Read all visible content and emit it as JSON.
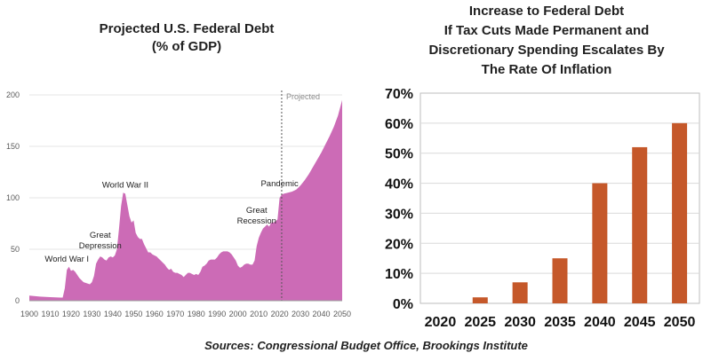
{
  "source_note": "Sources: Congressional Budget Office, Brookings Institute",
  "chart_data": [
    {
      "type": "area",
      "title_lines": [
        "Projected U.S. Federal Debt",
        "(% of GDP)"
      ],
      "color": "#cc6bb6",
      "xlim": [
        1900,
        2050
      ],
      "ylim": [
        0,
        200
      ],
      "x_ticks": [
        1900,
        1910,
        1920,
        1930,
        1940,
        1950,
        1960,
        1970,
        1980,
        1990,
        2000,
        2010,
        2020,
        2030,
        2040,
        2050
      ],
      "y_ticks": [
        0,
        50,
        100,
        150,
        200
      ],
      "projection_start": 2021,
      "projection_label": "Projected",
      "annotations": [
        {
          "lines": [
            "World War I"
          ],
          "x": 1918,
          "y": 38
        },
        {
          "lines": [
            "Great",
            "Depression"
          ],
          "x": 1934,
          "y": 51
        },
        {
          "lines": [
            "World War II"
          ],
          "x": 1946,
          "y": 110
        },
        {
          "lines": [
            "Pandemic"
          ],
          "x": 2020,
          "y": 111
        },
        {
          "lines": [
            "Great",
            "Recession"
          ],
          "x": 2009,
          "y": 75
        }
      ],
      "points": [
        [
          1900,
          5
        ],
        [
          1905,
          4
        ],
        [
          1910,
          3.5
        ],
        [
          1915,
          3
        ],
        [
          1916,
          3
        ],
        [
          1917,
          12
        ],
        [
          1918,
          30
        ],
        [
          1919,
          33
        ],
        [
          1920,
          29
        ],
        [
          1921,
          30
        ],
        [
          1922,
          28
        ],
        [
          1924,
          22
        ],
        [
          1926,
          18
        ],
        [
          1929,
          16
        ],
        [
          1930,
          18
        ],
        [
          1931,
          24
        ],
        [
          1932,
          36
        ],
        [
          1933,
          40
        ],
        [
          1934,
          43
        ],
        [
          1935,
          42
        ],
        [
          1936,
          40
        ],
        [
          1937,
          39
        ],
        [
          1938,
          42
        ],
        [
          1939,
          43
        ],
        [
          1940,
          42
        ],
        [
          1941,
          44
        ],
        [
          1942,
          50
        ],
        [
          1943,
          70
        ],
        [
          1944,
          92
        ],
        [
          1945,
          105
        ],
        [
          1946,
          104
        ],
        [
          1947,
          93
        ],
        [
          1948,
          82
        ],
        [
          1949,
          76
        ],
        [
          1950,
          78
        ],
        [
          1951,
          66
        ],
        [
          1952,
          62
        ],
        [
          1953,
          60
        ],
        [
          1954,
          60
        ],
        [
          1955,
          55
        ],
        [
          1956,
          51
        ],
        [
          1957,
          47
        ],
        [
          1958,
          47
        ],
        [
          1959,
          45
        ],
        [
          1960,
          44
        ],
        [
          1961,
          43
        ],
        [
          1962,
          41
        ],
        [
          1963,
          39
        ],
        [
          1964,
          37
        ],
        [
          1965,
          35
        ],
        [
          1966,
          32
        ],
        [
          1967,
          30
        ],
        [
          1968,
          31
        ],
        [
          1969,
          28
        ],
        [
          1970,
          27
        ],
        [
          1971,
          27
        ],
        [
          1972,
          26
        ],
        [
          1973,
          25
        ],
        [
          1974,
          23
        ],
        [
          1975,
          25
        ],
        [
          1976,
          27
        ],
        [
          1977,
          27
        ],
        [
          1978,
          26
        ],
        [
          1979,
          25
        ],
        [
          1980,
          26
        ],
        [
          1981,
          25
        ],
        [
          1982,
          28
        ],
        [
          1983,
          33
        ],
        [
          1984,
          34
        ],
        [
          1985,
          36
        ],
        [
          1986,
          39
        ],
        [
          1987,
          40
        ],
        [
          1988,
          40
        ],
        [
          1989,
          40
        ],
        [
          1990,
          42
        ],
        [
          1991,
          45
        ],
        [
          1992,
          47
        ],
        [
          1993,
          48
        ],
        [
          1994,
          48
        ],
        [
          1995,
          48
        ],
        [
          1996,
          47
        ],
        [
          1997,
          45
        ],
        [
          1998,
          42
        ],
        [
          1999,
          39
        ],
        [
          2000,
          34
        ],
        [
          2001,
          32
        ],
        [
          2002,
          33
        ],
        [
          2003,
          35
        ],
        [
          2004,
          36
        ],
        [
          2005,
          36
        ],
        [
          2006,
          35
        ],
        [
          2007,
          35
        ],
        [
          2008,
          39
        ],
        [
          2009,
          53
        ],
        [
          2010,
          61
        ],
        [
          2011,
          66
        ],
        [
          2012,
          70
        ],
        [
          2013,
          72
        ],
        [
          2014,
          74
        ],
        [
          2015,
          72
        ],
        [
          2016,
          76
        ],
        [
          2017,
          76
        ],
        [
          2018,
          77
        ],
        [
          2019,
          79
        ],
        [
          2020,
          100
        ],
        [
          2021,
          103
        ],
        [
          2022,
          104
        ],
        [
          2024,
          105
        ],
        [
          2026,
          106
        ],
        [
          2028,
          108
        ],
        [
          2030,
          112
        ],
        [
          2032,
          117
        ],
        [
          2034,
          123
        ],
        [
          2036,
          130
        ],
        [
          2038,
          137
        ],
        [
          2040,
          144
        ],
        [
          2042,
          152
        ],
        [
          2044,
          160
        ],
        [
          2046,
          169
        ],
        [
          2048,
          180
        ],
        [
          2050,
          195
        ]
      ]
    },
    {
      "type": "bar",
      "title_lines": [
        "Increase to Federal Debt",
        "If Tax Cuts Made Permanent and",
        "Discretionary Spending Escalates By",
        "The Rate Of Inflation"
      ],
      "color": "#c5582a",
      "categories": [
        "2020",
        "2025",
        "2030",
        "2035",
        "2040",
        "2045",
        "2050"
      ],
      "values": [
        0,
        2,
        7,
        15,
        40,
        52,
        60
      ],
      "ylim": [
        0,
        70
      ],
      "y_ticks": [
        0,
        10,
        20,
        30,
        40,
        50,
        60,
        70
      ],
      "y_tick_labels": [
        "0%",
        "10%",
        "20%",
        "30%",
        "40%",
        "50%",
        "60%",
        "70%"
      ]
    }
  ]
}
